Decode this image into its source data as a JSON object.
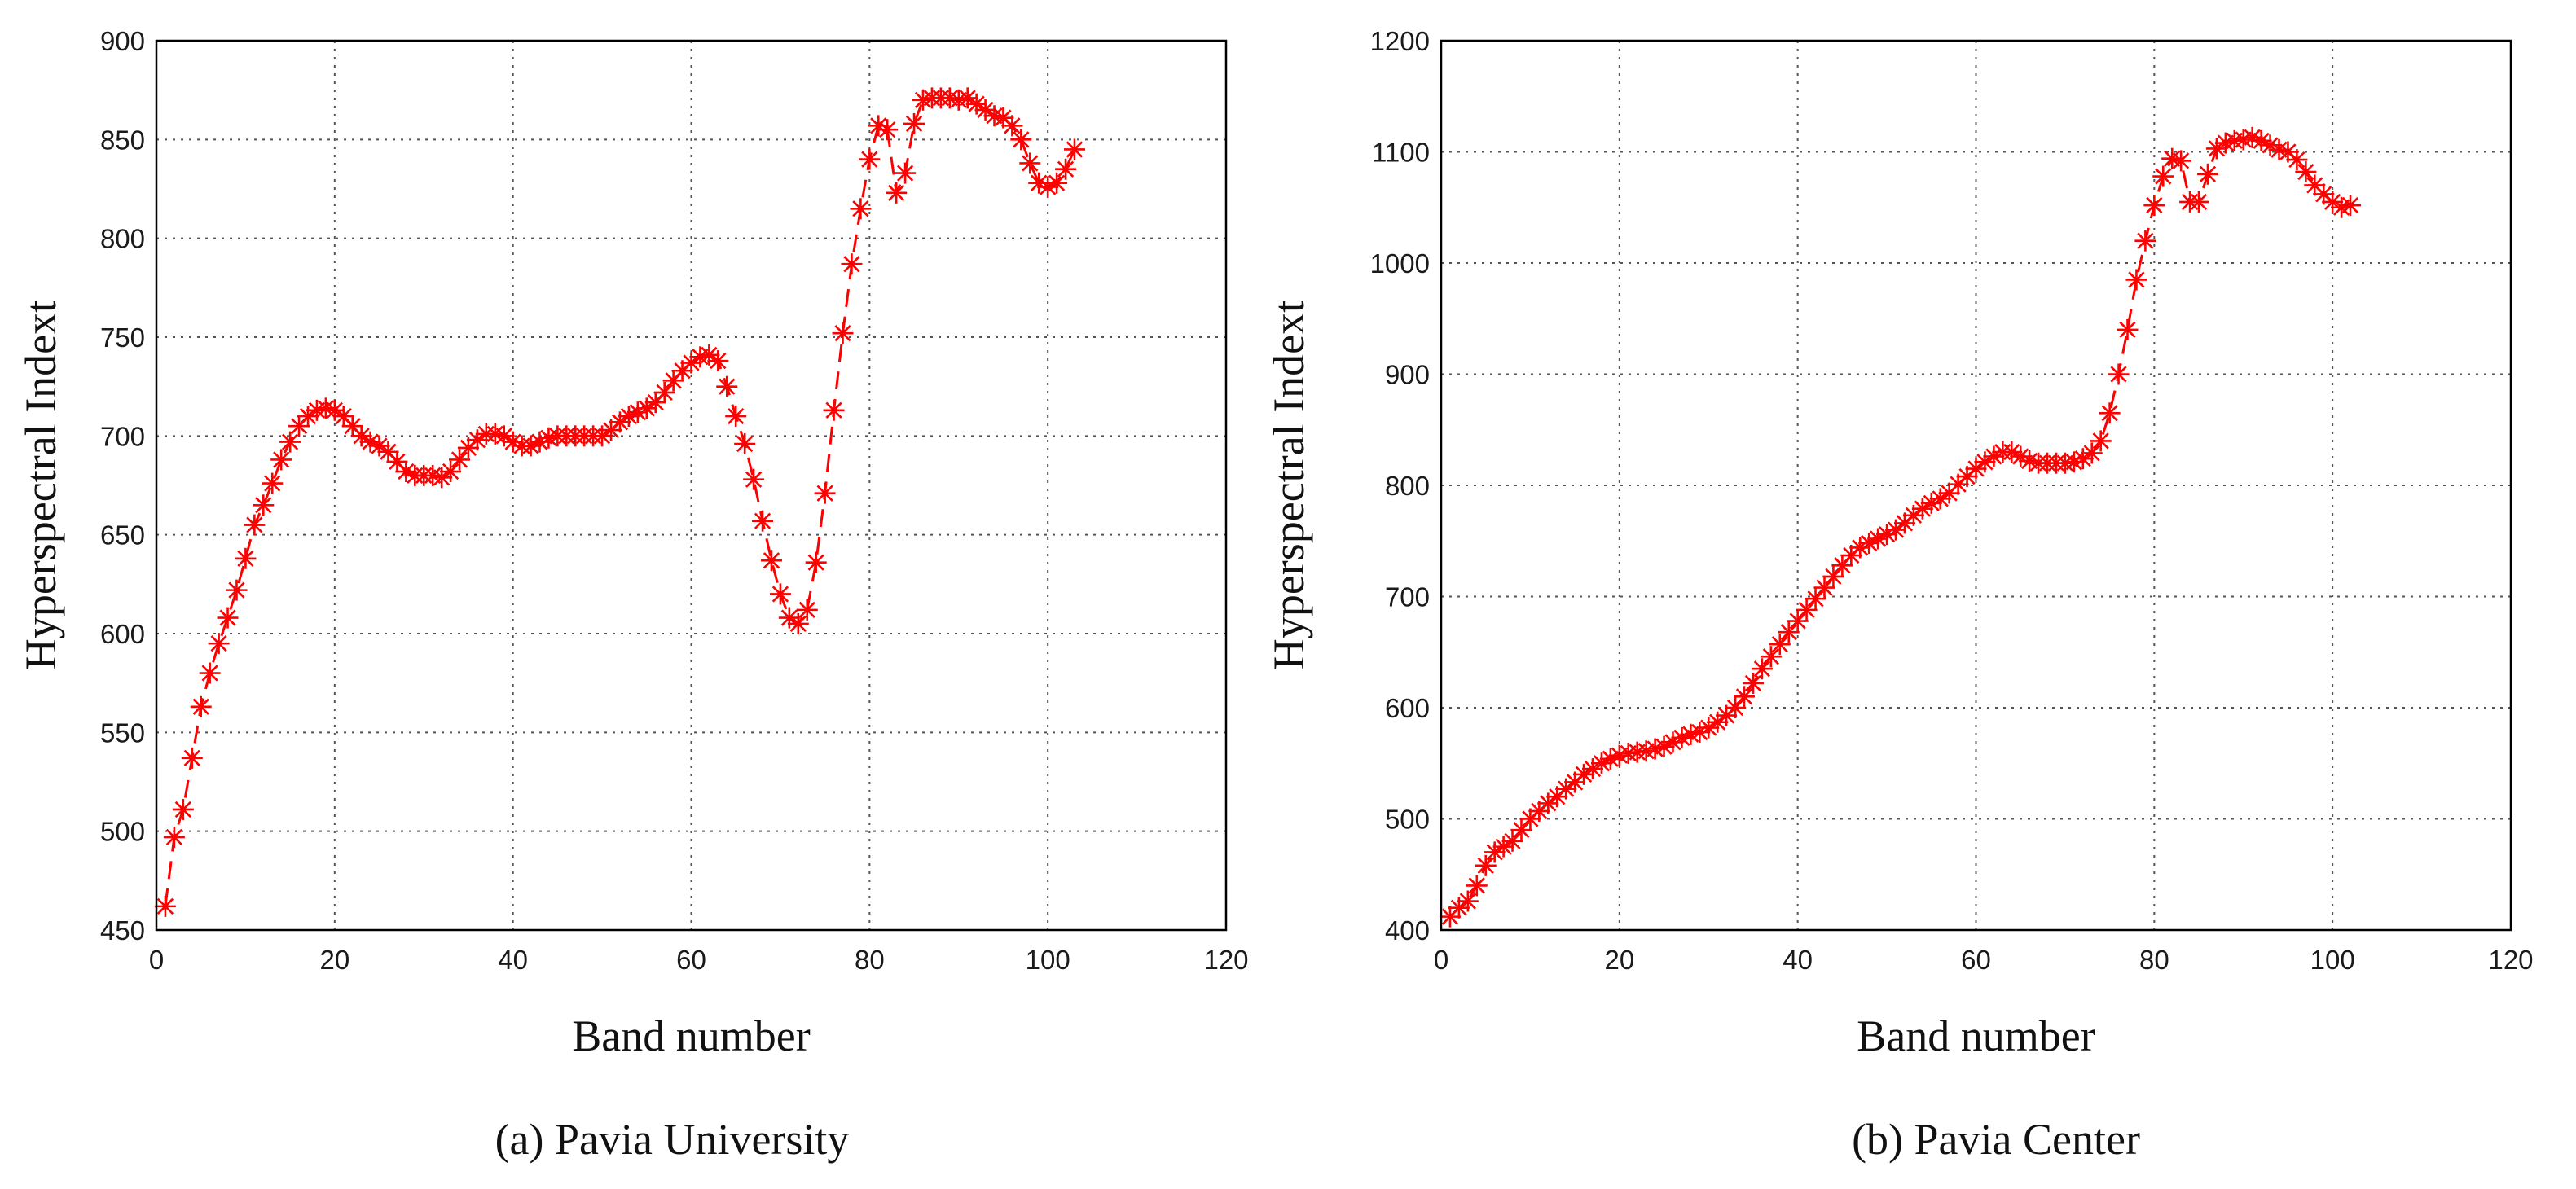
{
  "figure": {
    "background": "#ffffff",
    "series_color": "#ff0000"
  },
  "chart_data": [
    {
      "type": "line",
      "marker": "asterisk",
      "line_style": "dashed",
      "caption": "(a)  Pavia University",
      "title": "",
      "xlabel": "Band number",
      "ylabel": "Hyperspectral Indext",
      "xlim": [
        0,
        120
      ],
      "ylim": [
        450,
        900
      ],
      "xticks": [
        0,
        20,
        40,
        60,
        80,
        100,
        120
      ],
      "yticks": [
        450,
        500,
        550,
        600,
        650,
        700,
        750,
        800,
        850,
        900
      ],
      "grid": true,
      "series": [
        {
          "x": [
            1,
            2,
            3,
            4,
            5,
            6,
            7,
            8,
            9,
            10,
            11,
            12,
            13,
            14,
            15,
            16,
            17,
            18,
            19,
            20,
            21,
            22,
            23,
            24,
            25,
            26,
            27,
            28,
            29,
            30,
            31,
            32,
            33,
            34,
            35,
            36,
            37,
            38,
            39,
            40,
            41,
            42,
            43,
            44,
            45,
            46,
            47,
            48,
            49,
            50,
            51,
            52,
            53,
            54,
            55,
            56,
            57,
            58,
            59,
            60,
            61,
            62,
            63,
            64,
            65,
            66,
            67,
            68,
            69,
            70,
            71,
            72,
            73,
            74,
            75,
            76,
            77,
            78,
            79,
            80,
            81,
            82,
            83,
            84,
            85,
            86,
            87,
            88,
            89,
            90,
            91,
            92,
            93,
            94,
            95,
            96,
            97,
            98,
            99,
            100,
            101,
            102,
            103
          ],
          "y": [
            462,
            497,
            511,
            537,
            563,
            580,
            595,
            608,
            622,
            638,
            655,
            665,
            676,
            688,
            697,
            705,
            710,
            713,
            714,
            713,
            710,
            705,
            700,
            697,
            695,
            692,
            687,
            682,
            680,
            680,
            680,
            679,
            682,
            688,
            694,
            698,
            701,
            701,
            700,
            697,
            695,
            695,
            697,
            699,
            700,
            700,
            700,
            700,
            700,
            700,
            703,
            707,
            710,
            712,
            714,
            717,
            722,
            728,
            733,
            737,
            740,
            741,
            738,
            725,
            710,
            696,
            678,
            657,
            637,
            620,
            608,
            605,
            612,
            636,
            671,
            713,
            752,
            787,
            815,
            840,
            857,
            855,
            823,
            833,
            858,
            870,
            871,
            871,
            871,
            870,
            871,
            868,
            865,
            862,
            861,
            857,
            850,
            838,
            828,
            826,
            828,
            835,
            845
          ]
        }
      ]
    },
    {
      "type": "line",
      "marker": "asterisk",
      "line_style": "dashed",
      "caption": "(b)  Pavia Center",
      "title": "",
      "xlabel": "Band number",
      "ylabel": "Hyperspectral Indext",
      "xlim": [
        0,
        120
      ],
      "ylim": [
        400,
        1200
      ],
      "xticks": [
        0,
        20,
        40,
        60,
        80,
        100,
        120
      ],
      "yticks": [
        400,
        500,
        600,
        700,
        800,
        900,
        1000,
        1100,
        1200
      ],
      "grid": true,
      "series": [
        {
          "x": [
            1,
            2,
            3,
            4,
            5,
            6,
            7,
            8,
            9,
            10,
            11,
            12,
            13,
            14,
            15,
            16,
            17,
            18,
            19,
            20,
            21,
            22,
            23,
            24,
            25,
            26,
            27,
            28,
            29,
            30,
            31,
            32,
            33,
            34,
            35,
            36,
            37,
            38,
            39,
            40,
            41,
            42,
            43,
            44,
            45,
            46,
            47,
            48,
            49,
            50,
            51,
            52,
            53,
            54,
            55,
            56,
            57,
            58,
            59,
            60,
            61,
            62,
            63,
            64,
            65,
            66,
            67,
            68,
            69,
            70,
            71,
            72,
            73,
            74,
            75,
            76,
            77,
            78,
            79,
            80,
            81,
            82,
            83,
            84,
            85,
            86,
            87,
            88,
            89,
            90,
            91,
            92,
            93,
            94,
            95,
            96,
            97,
            98,
            99,
            100,
            101,
            102
          ],
          "y": [
            412,
            420,
            426,
            440,
            458,
            470,
            475,
            480,
            490,
            500,
            507,
            514,
            520,
            527,
            533,
            540,
            545,
            550,
            554,
            557,
            559,
            560,
            561,
            563,
            565,
            569,
            573,
            576,
            578,
            582,
            587,
            593,
            600,
            610,
            622,
            635,
            646,
            657,
            668,
            678,
            688,
            698,
            708,
            718,
            728,
            737,
            744,
            748,
            752,
            756,
            760,
            766,
            773,
            779,
            784,
            788,
            793,
            801,
            808,
            815,
            821,
            826,
            830,
            830,
            826,
            822,
            820,
            820,
            820,
            820,
            821,
            824,
            829,
            840,
            865,
            900,
            940,
            985,
            1020,
            1052,
            1078,
            1094,
            1092,
            1055,
            1055,
            1080,
            1103,
            1108,
            1110,
            1111,
            1113,
            1110,
            1106,
            1102,
            1100,
            1093,
            1082,
            1070,
            1062,
            1055,
            1050,
            1052
          ]
        }
      ]
    }
  ]
}
